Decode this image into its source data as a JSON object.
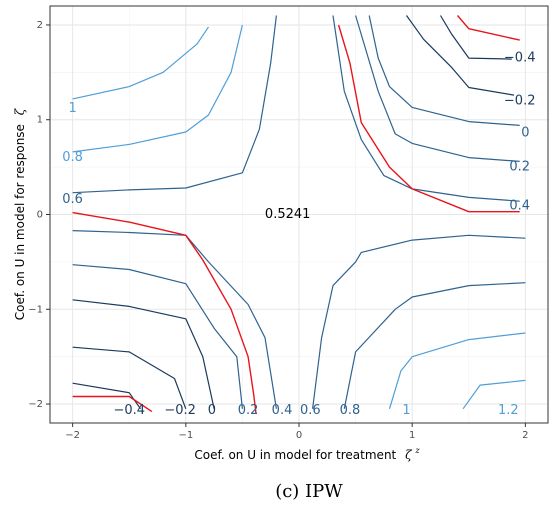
{
  "chart_data": {
    "type": "contour",
    "xlabel": "Coef. on U in model for treatment",
    "xlabel_symbol": "ζ",
    "xlabel_symbol_sup": "z",
    "ylabel": "Coef. on U in model for response",
    "ylabel_symbol": "ζ",
    "xlim": [
      -2.2,
      2.2
    ],
    "ylim": [
      -2.2,
      2.2
    ],
    "xticks": [
      -2,
      -1,
      0,
      1,
      2
    ],
    "yticks": [
      -2,
      -1,
      0,
      1,
      2
    ],
    "xtick_labels": [
      "−2",
      "−1",
      "0",
      "1",
      "2"
    ],
    "ytick_labels": [
      "−2",
      "−1",
      "0",
      "1",
      "2"
    ],
    "grid": true,
    "center_label": {
      "text": "0.5241",
      "x": -0.1,
      "y": 0
    },
    "colors": {
      "highlight": "#e8141c",
      "dark": "#1a3a5c",
      "mid": "#2e6390",
      "light": "#4f9fd8"
    },
    "contours": [
      {
        "label": "1",
        "shade": "light",
        "label_at": [
          -2.0,
          1.12
        ],
        "points": [
          [
            -2.0,
            1.22
          ],
          [
            -1.5,
            1.35
          ],
          [
            -1.2,
            1.5
          ],
          [
            -0.9,
            1.8
          ],
          [
            -0.8,
            1.98
          ]
        ]
      },
      {
        "label": "0.8",
        "shade": "light",
        "label_at": [
          -2.0,
          0.6
        ],
        "points": [
          [
            -2.0,
            0.66
          ],
          [
            -1.5,
            0.74
          ],
          [
            -1.0,
            0.87
          ],
          [
            -0.8,
            1.05
          ],
          [
            -0.6,
            1.5
          ],
          [
            -0.5,
            2.0
          ]
        ]
      },
      {
        "label": "0.6",
        "shade": "mid",
        "label_at": [
          -2.0,
          0.16
        ],
        "points": [
          [
            -2.0,
            0.23
          ],
          [
            -1.5,
            0.26
          ],
          [
            -1.0,
            0.28
          ],
          [
            -0.5,
            0.44
          ],
          [
            -0.35,
            0.9
          ],
          [
            -0.25,
            1.6
          ],
          [
            -0.2,
            2.1
          ]
        ]
      },
      {
        "label": "0.4",
        "shade": "mid",
        "label_at": [
          1.95,
          0.09
        ],
        "points": [
          [
            1.95,
            0.14
          ],
          [
            1.5,
            0.18
          ],
          [
            1.0,
            0.27
          ],
          [
            0.75,
            0.41
          ],
          [
            0.55,
            0.79
          ],
          [
            0.4,
            1.3
          ],
          [
            0.3,
            2.1
          ]
        ]
      },
      {
        "label": "0.2",
        "shade": "mid",
        "label_at": [
          1.95,
          0.5
        ],
        "points": [
          [
            1.95,
            0.56
          ],
          [
            1.5,
            0.6
          ],
          [
            1.0,
            0.75
          ],
          [
            0.85,
            0.85
          ],
          [
            0.7,
            1.3
          ],
          [
            0.5,
            2.1
          ]
        ]
      },
      {
        "label": "0",
        "shade": "mid",
        "label_at": [
          2.0,
          0.86
        ],
        "points": [
          [
            1.95,
            0.94
          ],
          [
            1.5,
            0.98
          ],
          [
            1.0,
            1.13
          ],
          [
            0.8,
            1.35
          ],
          [
            0.7,
            1.65
          ],
          [
            0.62,
            2.1
          ]
        ]
      },
      {
        "label": "−0.2",
        "shade": "dark",
        "label_at": [
          1.95,
          1.2
        ],
        "points": [
          [
            1.9,
            1.26
          ],
          [
            1.5,
            1.34
          ],
          [
            1.35,
            1.55
          ],
          [
            1.1,
            1.85
          ],
          [
            0.95,
            2.1
          ]
        ]
      },
      {
        "label": "−0.4",
        "shade": "dark",
        "label_at": [
          1.95,
          1.65
        ],
        "points": [
          [
            1.88,
            1.64
          ],
          [
            1.5,
            1.65
          ],
          [
            1.35,
            1.9
          ],
          [
            1.25,
            2.1
          ]
        ]
      },
      {
        "label": "",
        "shade": "highlight",
        "points": [
          [
            1.95,
            0.03
          ],
          [
            1.5,
            0.03
          ],
          [
            1.0,
            0.27
          ],
          [
            0.8,
            0.5
          ],
          [
            0.55,
            0.97
          ],
          [
            0.45,
            1.6
          ],
          [
            0.35,
            2.0
          ]
        ]
      },
      {
        "label": "",
        "shade": "highlight",
        "points": [
          [
            1.95,
            1.84
          ],
          [
            1.5,
            1.96
          ],
          [
            1.4,
            2.1
          ]
        ]
      },
      {
        "label": "",
        "shade": "highlight",
        "points": [
          [
            -2.0,
            0.02
          ],
          [
            -1.5,
            -0.08
          ],
          [
            -1.0,
            -0.22
          ],
          [
            -0.85,
            -0.48
          ],
          [
            -0.6,
            -1.0
          ],
          [
            -0.45,
            -1.5
          ],
          [
            -0.4,
            -1.9
          ],
          [
            -0.38,
            -2.1
          ]
        ]
      },
      {
        "label": "",
        "shade": "highlight",
        "points": [
          [
            -2.0,
            -1.92
          ],
          [
            -1.5,
            -1.92
          ],
          [
            -1.3,
            -2.08
          ]
        ]
      },
      {
        "label": "−0.4",
        "shade": "dark",
        "label_at": [
          -1.5,
          -2.07
        ],
        "points": [
          [
            -2.0,
            -1.78
          ],
          [
            -1.5,
            -1.88
          ],
          [
            -1.4,
            -2.05
          ]
        ]
      },
      {
        "label": "−0.2",
        "shade": "dark",
        "label_at": [
          -1.05,
          -2.07
        ],
        "points": [
          [
            -2.0,
            -1.4
          ],
          [
            -1.5,
            -1.45
          ],
          [
            -1.1,
            -1.73
          ],
          [
            -1.0,
            -2.05
          ]
        ]
      },
      {
        "label": "0",
        "shade": "dark",
        "label_at": [
          -0.77,
          -2.07
        ],
        "points": [
          [
            -2.0,
            -0.9
          ],
          [
            -1.5,
            -0.97
          ],
          [
            -1.0,
            -1.1
          ],
          [
            -0.85,
            -1.5
          ],
          [
            -0.75,
            -2.05
          ]
        ]
      },
      {
        "label": "0.2",
        "shade": "mid",
        "label_at": [
          -0.45,
          -2.07
        ],
        "points": [
          [
            -2.0,
            -0.53
          ],
          [
            -1.5,
            -0.58
          ],
          [
            -1.0,
            -0.73
          ],
          [
            -0.75,
            -1.2
          ],
          [
            -0.55,
            -1.5
          ],
          [
            -0.5,
            -2.05
          ]
        ]
      },
      {
        "label": "0.4",
        "shade": "mid",
        "label_at": [
          -0.15,
          -2.07
        ],
        "points": [
          [
            -2.0,
            -0.17
          ],
          [
            -1.5,
            -0.19
          ],
          [
            -1.0,
            -0.22
          ],
          [
            -0.8,
            -0.5
          ],
          [
            -0.45,
            -0.95
          ],
          [
            -0.3,
            -1.3
          ],
          [
            -0.2,
            -2.05
          ]
        ]
      },
      {
        "label": "0.6",
        "shade": "mid",
        "label_at": [
          0.1,
          -2.07
        ],
        "points": [
          [
            2.0,
            -0.25
          ],
          [
            1.5,
            -0.22
          ],
          [
            1.0,
            -0.27
          ],
          [
            0.55,
            -0.4
          ],
          [
            0.5,
            -0.5
          ],
          [
            0.3,
            -0.75
          ],
          [
            0.2,
            -1.3
          ],
          [
            0.12,
            -2.05
          ]
        ]
      },
      {
        "label": "0.8",
        "shade": "mid",
        "label_at": [
          0.45,
          -2.07
        ],
        "points": [
          [
            2.0,
            -0.72
          ],
          [
            1.5,
            -0.75
          ],
          [
            1.0,
            -0.87
          ],
          [
            0.85,
            -1.0
          ],
          [
            0.5,
            -1.45
          ],
          [
            0.4,
            -2.05
          ]
        ]
      },
      {
        "label": "1",
        "shade": "light",
        "label_at": [
          0.95,
          -2.07
        ],
        "points": [
          [
            2.0,
            -1.25
          ],
          [
            1.5,
            -1.32
          ],
          [
            1.0,
            -1.5
          ],
          [
            0.9,
            -1.65
          ],
          [
            0.8,
            -2.05
          ]
        ]
      },
      {
        "label": "1.2",
        "shade": "light",
        "label_at": [
          1.85,
          -2.07
        ],
        "points": [
          [
            2.0,
            -1.75
          ],
          [
            1.6,
            -1.8
          ],
          [
            1.45,
            -2.05
          ]
        ]
      }
    ]
  },
  "caption": "(c) IPW"
}
